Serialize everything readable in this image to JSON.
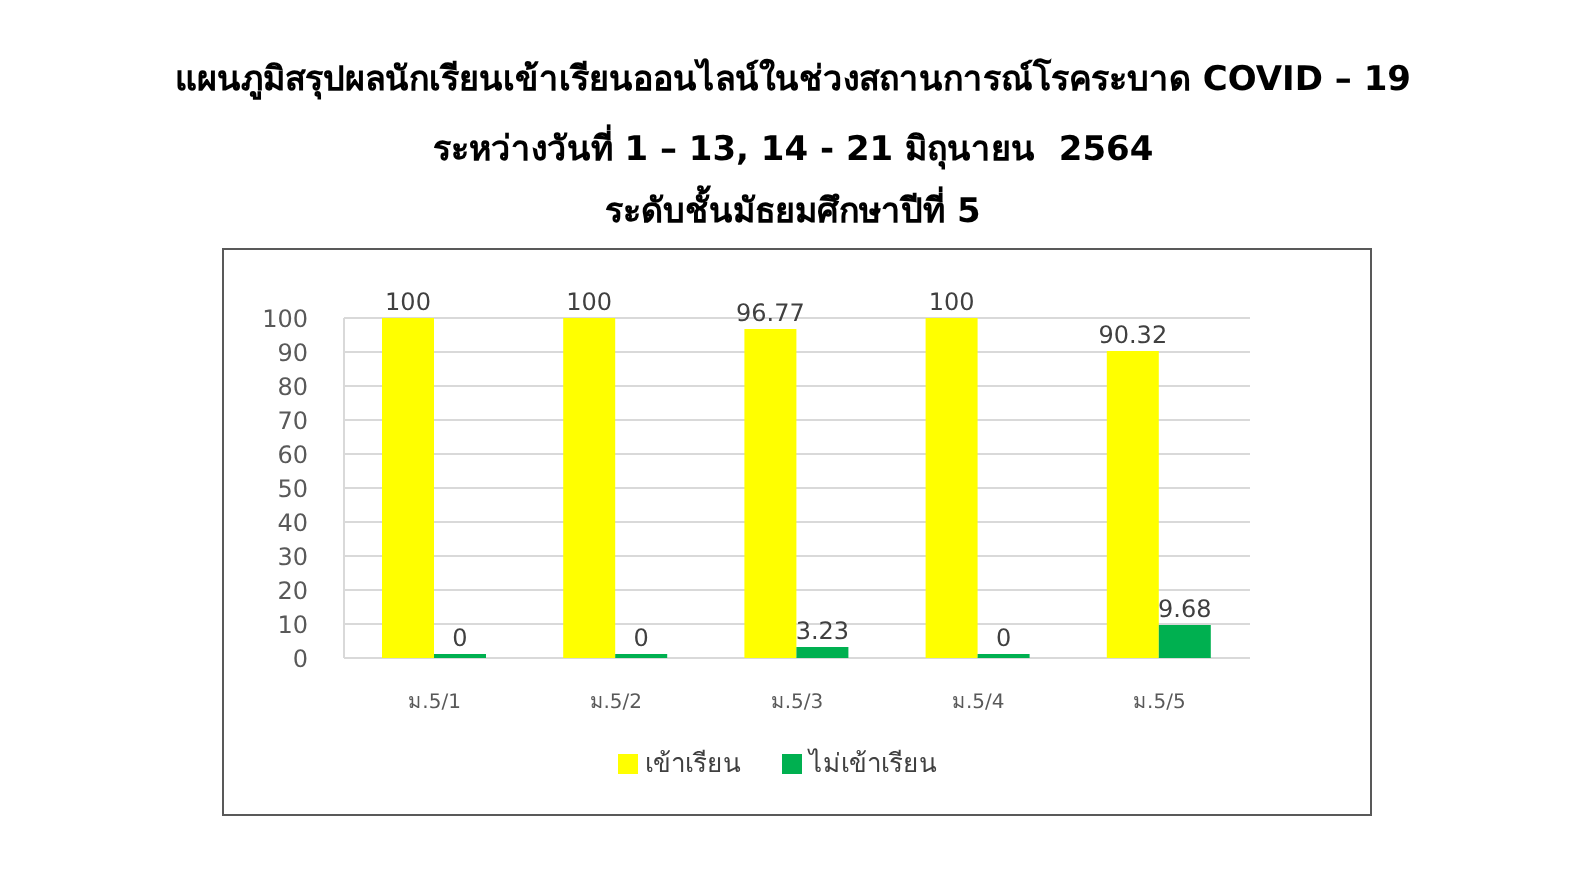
{
  "chart_data": {
    "type": "bar",
    "title": "แผนภูมิสรุปผลนักเรียนเข้าเรียนออนไลน์ในช่วงสถานการณ์โรคระบาด COVID – 19",
    "subtitle": "ระหว่างวันที่ 1 – 13, 14 - 21 มิถุนายน  2564\nระดับชั้นมัธยมศึกษาปีที่ 5",
    "categories": [
      "ม.5/1",
      "ม.5/2",
      "ม.5/3",
      "ม.5/4",
      "ม.5/5"
    ],
    "series": [
      {
        "name": "เข้าเรียน",
        "color": "#ffff00",
        "values": [
          100,
          100,
          96.77,
          100,
          90.32
        ]
      },
      {
        "name": "ไม่เข้าเรียน",
        "color": "#00b050",
        "values": [
          0,
          0,
          3.23,
          0,
          9.68
        ]
      }
    ],
    "ylim": [
      0,
      100
    ],
    "yticks": [
      0,
      10,
      20,
      30,
      40,
      50,
      60,
      70,
      80,
      90,
      100
    ],
    "grid": "y",
    "legend": "bottom",
    "data_labels": true
  }
}
